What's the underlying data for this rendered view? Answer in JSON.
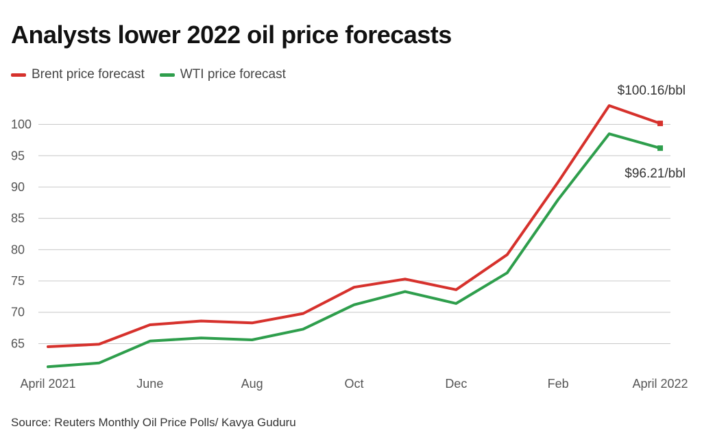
{
  "chart_data": {
    "type": "line",
    "title": "Analysts lower 2022 oil price forecasts",
    "xlabel": "",
    "ylabel": "",
    "x": [
      "Apr 2021",
      "May 2021",
      "Jun 2021",
      "Jul 2021",
      "Aug 2021",
      "Sep 2021",
      "Oct 2021",
      "Nov 2021",
      "Dec 2021",
      "Jan 2022",
      "Feb 2022",
      "Mar 2022",
      "Apr 2022"
    ],
    "x_tick_labels": [
      {
        "index": 0,
        "label": "April 2021"
      },
      {
        "index": 2,
        "label": "June"
      },
      {
        "index": 4,
        "label": "Aug"
      },
      {
        "index": 6,
        "label": "Oct"
      },
      {
        "index": 8,
        "label": "Dec"
      },
      {
        "index": 10,
        "label": "Feb"
      },
      {
        "index": 12,
        "label": "April 2022"
      }
    ],
    "y_ticks": [
      65,
      70,
      75,
      80,
      85,
      90,
      95,
      100
    ],
    "ylim": [
      61,
      104
    ],
    "grid": true,
    "legend_position": "top-left",
    "series": [
      {
        "name": "Brent price forecast",
        "color": "#d6312c",
        "values": [
          64.5,
          64.9,
          68.0,
          68.6,
          68.3,
          69.8,
          74.0,
          75.3,
          73.6,
          79.2,
          90.8,
          103.0,
          100.16
        ],
        "end_label": "$100.16/bbl"
      },
      {
        "name": "WTI price forecast",
        "color": "#2e9e4c",
        "values": [
          61.3,
          61.9,
          65.4,
          65.9,
          65.6,
          67.3,
          71.2,
          73.3,
          71.4,
          76.3,
          88.0,
          98.5,
          96.21
        ],
        "end_label": "$96.21/bbl"
      }
    ],
    "source": "Source: Reuters Monthly Oil Price Polls/ Kavya Guduru"
  }
}
